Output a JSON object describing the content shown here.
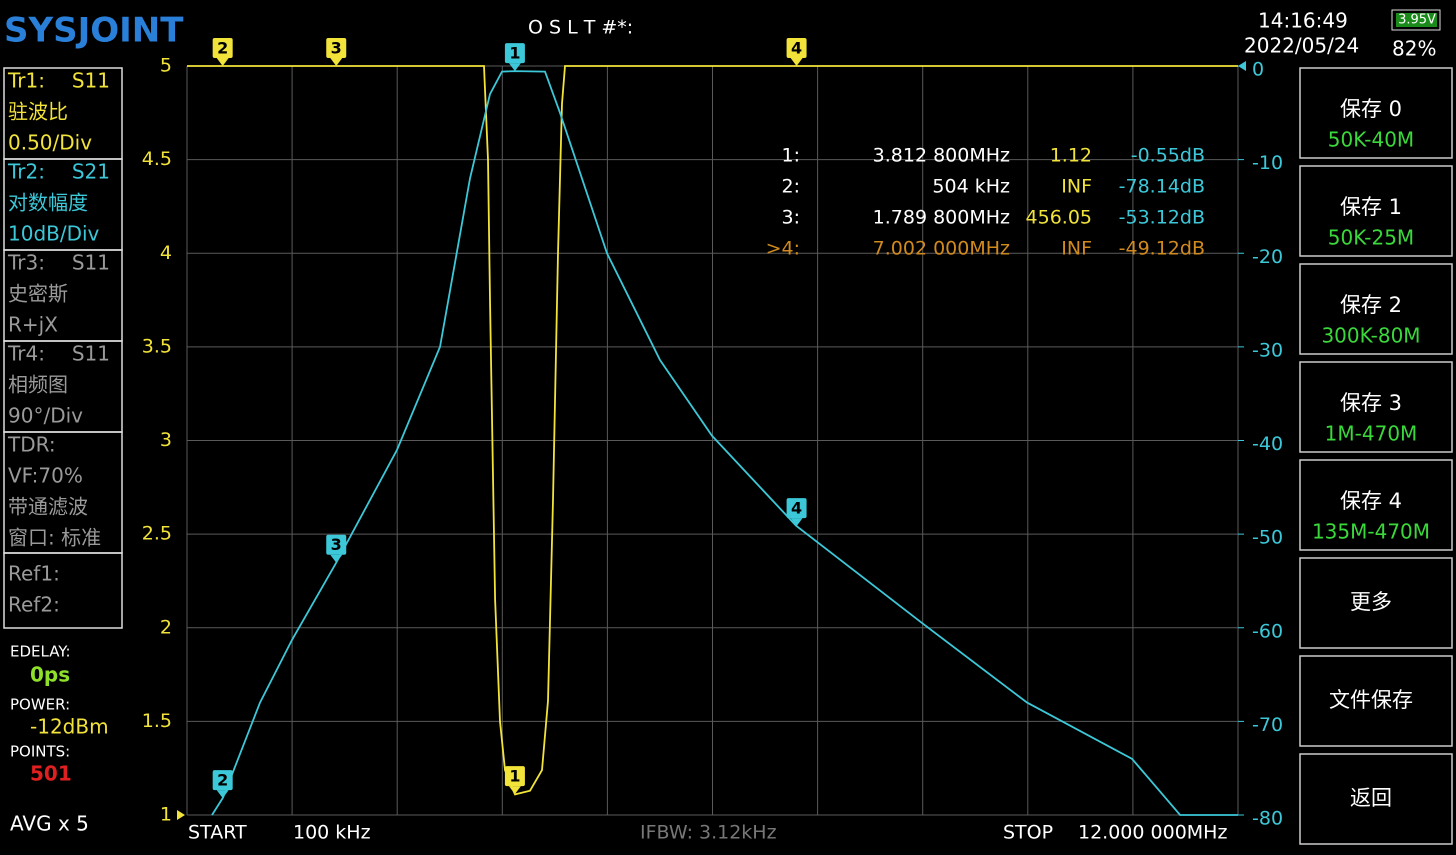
{
  "header": {
    "logo": "SYSJOINT",
    "cal_status": "O S L T #*:",
    "time": "14:16:49",
    "date": "2022/05/24",
    "battery_voltage": "3.95V",
    "battery_percent": "82%"
  },
  "traces": [
    {
      "name": "Tr1:",
      "param": "S11",
      "format": "驻波比",
      "scale": "0.50/Div"
    },
    {
      "name": "Tr2:",
      "param": "S21",
      "format": "对数幅度",
      "scale": "10dB/Div"
    },
    {
      "name": "Tr3:",
      "param": "S11",
      "format": "史密斯",
      "scale": "R+jX"
    },
    {
      "name": "Tr4:",
      "param": "S11",
      "format": "相频图",
      "scale": "90°/Div"
    }
  ],
  "tdr": [
    "TDR:",
    "VF:70%",
    "带通滤波",
    "窗口: 标准"
  ],
  "refs": [
    "Ref1:",
    "Ref2:"
  ],
  "status": {
    "edelay_label": "EDELAY:",
    "edelay": "0ps",
    "power_label": "POWER:",
    "power": "-12dBm",
    "points_label": "POINTS:",
    "points": "501",
    "avg": "AVG x 5"
  },
  "buttons": [
    {
      "label": "保存 0",
      "sub": "50K-40M"
    },
    {
      "label": "保存 1",
      "sub": "50K-25M"
    },
    {
      "label": "保存 2",
      "sub": "300K-80M"
    },
    {
      "label": "保存 3",
      "sub": "1M-470M"
    },
    {
      "label": "保存 4",
      "sub": "135M-470M"
    },
    {
      "label": "更多"
    },
    {
      "label": "文件保存"
    },
    {
      "label": "返回"
    }
  ],
  "footer": {
    "start_label": "START",
    "start": "100 kHz",
    "ifbw": "IFBW: 3.12kHz",
    "stop_label": "STOP",
    "stop": "12.000 000MHz"
  },
  "chart_data": {
    "type": "line",
    "xlim": [
      0.1,
      12
    ],
    "ylim": [
      1,
      5
    ],
    "yticks": [
      5,
      4.5,
      4,
      3.5,
      3,
      2.5,
      2,
      1.5,
      1
    ],
    "y2lim": [
      -80,
      0
    ],
    "y2ticks": [
      0,
      -10,
      -20,
      -30,
      -40,
      -50,
      -60,
      -70,
      -80
    ],
    "grid": true,
    "series": [
      {
        "name": "Tr1",
        "color": "#f2e33a",
        "x": [
          0.1,
          3.463,
          3.508,
          3.531,
          3.588,
          3.644,
          3.701,
          3.814,
          3.984,
          4.12,
          4.188,
          4.244,
          4.301,
          4.346,
          4.38,
          12
        ],
        "values": [
          5,
          5,
          4.5,
          3.75,
          2.15,
          1.5,
          1.24,
          1.11,
          1.13,
          1.24,
          1.61,
          2.68,
          4.0,
          4.8,
          5,
          5
        ]
      },
      {
        "name": "Tr2",
        "color": "#3cc8d8",
        "axis": "y2",
        "x": [
          0.383,
          0.508,
          0.927,
          1.289,
          1.787,
          2.478,
          2.965,
          3.304,
          3.531,
          3.667,
          3.814,
          4.154,
          4.323,
          4.855,
          5.456,
          6.044,
          6.996,
          8.423,
          9.612,
          10.8,
          11.344,
          12
        ],
        "values": [
          -80,
          -78.14,
          -68,
          -61.3,
          -53.1,
          -41,
          -30,
          -12,
          -3,
          -0.6,
          -0.55,
          -0.6,
          -5,
          -20,
          -31.4,
          -39.5,
          -49.1,
          -59.5,
          -68,
          -74,
          -80,
          -80
        ]
      }
    ],
    "markers": [
      {
        "label": "1",
        "x": 3.8128,
        "row_label": "1:",
        "freq": "3.812 800MHz",
        "swr": "1.12",
        "s21": "-0.55dB"
      },
      {
        "label": "2",
        "x": 0.504,
        "row_label": "2:",
        "freq": "504 kHz",
        "swr": "INF",
        "s21": "-78.14dB"
      },
      {
        "label": "3",
        "x": 1.7898,
        "row_label": "3:",
        "freq": "1.789 800MHz",
        "swr": "456.05",
        "s21": "-53.12dB"
      },
      {
        "label": "4",
        "x": 7.002,
        "row_label": ">4:",
        "freq": "7.002 000MHz",
        "swr": "INF",
        "s21": "-49.12dB"
      }
    ]
  }
}
